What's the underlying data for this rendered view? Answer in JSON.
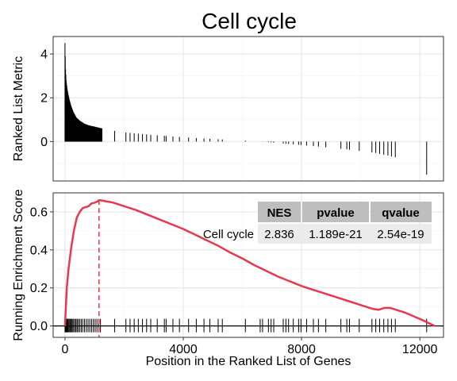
{
  "chart_data": [
    {
      "type": "bar",
      "panel": "ranked-list",
      "title": "Cell cycle",
      "ylabel": "Ranked List Metric",
      "xlim": [
        -400,
        12800
      ],
      "ylim": [
        -1.8,
        4.8
      ],
      "yticks": [
        0,
        2,
        4
      ],
      "grid": true,
      "profile": [
        [
          0,
          4.5
        ],
        [
          20,
          3.3
        ],
        [
          40,
          2.8
        ],
        [
          70,
          2.45
        ],
        [
          100,
          2.2
        ],
        [
          150,
          1.9
        ],
        [
          200,
          1.65
        ],
        [
          280,
          1.35
        ],
        [
          380,
          1.1
        ],
        [
          500,
          0.95
        ],
        [
          650,
          0.82
        ],
        [
          800,
          0.74
        ],
        [
          1000,
          0.68
        ],
        [
          1400,
          0.55
        ],
        [
          2000,
          0.42
        ],
        [
          3000,
          0.3
        ],
        [
          4000,
          0.2
        ],
        [
          5000,
          0.12
        ],
        [
          6000,
          0.05
        ],
        [
          6600,
          0.0
        ],
        [
          7500,
          -0.1
        ],
        [
          8500,
          -0.22
        ],
        [
          9500,
          -0.35
        ],
        [
          10500,
          -0.52
        ],
        [
          11200,
          -0.72
        ],
        [
          11800,
          -0.95
        ],
        [
          12300,
          -1.6
        ]
      ],
      "dense_end": 1250
    },
    {
      "type": "line",
      "panel": "enrichment",
      "ylabel": "Running Enrichment Score",
      "xlabel": "Position in the Ranked List of Genes",
      "xlim": [
        -400,
        12800
      ],
      "ylim": [
        -0.06,
        0.7
      ],
      "xticks": [
        0,
        4000,
        8000,
        12000
      ],
      "yticks": [
        0.0,
        0.2,
        0.4,
        0.6
      ],
      "grid": true,
      "colors": {
        "line": "#e8374e",
        "hits": "#000000",
        "zero": "#000000"
      },
      "peak": {
        "x": 1150,
        "y": 0.662
      },
      "series": [
        {
          "x": [
            0,
            60,
            120,
            200,
            300,
            400,
            500,
            600,
            700,
            800,
            900,
            1000,
            1100,
            1150,
            1250,
            1400,
            1600,
            1800,
            2000,
            2400,
            2800,
            3200,
            3600,
            4000,
            4400,
            4800,
            5200,
            5600,
            6000,
            6400,
            6800,
            7200,
            7600,
            8000,
            8400,
            8800,
            9200,
            9600,
            10000,
            10400,
            10600,
            10800,
            11000,
            11200,
            11500,
            11800,
            12100,
            12300,
            12500
          ],
          "values": [
            0.0,
            0.2,
            0.3,
            0.4,
            0.5,
            0.57,
            0.6,
            0.62,
            0.625,
            0.63,
            0.645,
            0.648,
            0.655,
            0.662,
            0.66,
            0.655,
            0.65,
            0.64,
            0.63,
            0.61,
            0.585,
            0.56,
            0.535,
            0.51,
            0.48,
            0.45,
            0.42,
            0.385,
            0.355,
            0.32,
            0.29,
            0.26,
            0.235,
            0.21,
            0.19,
            0.17,
            0.15,
            0.13,
            0.11,
            0.09,
            0.085,
            0.095,
            0.095,
            0.085,
            0.07,
            0.05,
            0.03,
            0.015,
            0.0
          ]
        }
      ],
      "hit_positions": [
        0,
        20,
        40,
        60,
        80,
        100,
        130,
        160,
        190,
        220,
        250,
        290,
        330,
        370,
        410,
        450,
        500,
        550,
        600,
        660,
        720,
        780,
        840,
        900,
        960,
        1020,
        1080,
        1140,
        1200,
        1680,
        2060,
        2200,
        2340,
        2480,
        2620,
        2760,
        2900,
        3120,
        3360,
        3420,
        3650,
        3870,
        4180,
        4440,
        4700,
        4900,
        5180,
        5320,
        6100,
        6600,
        6680,
        6880,
        6970,
        7060,
        7380,
        7470,
        7560,
        7720,
        7900,
        7980,
        8170,
        8400,
        8570,
        8820,
        9330,
        9530,
        9620,
        9950,
        10380,
        10510,
        10640,
        10780,
        10920,
        11040,
        11170,
        12230
      ],
      "table": {
        "row_label": "Cell cycle",
        "headers": [
          "NES",
          "pvalue",
          "qvalue"
        ],
        "values": [
          "2.836",
          "1.189e-21",
          "2.54e-19"
        ]
      }
    }
  ]
}
